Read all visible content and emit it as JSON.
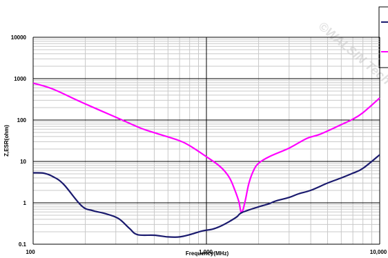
{
  "chart_data": {
    "type": "line",
    "title": "",
    "xlabel": "Frequency(MHz)",
    "ylabel": "Z,ESR(ohm)",
    "x_scale": "log",
    "y_scale": "log",
    "xlim": [
      100,
      10000
    ],
    "ylim": [
      0.1,
      10000
    ],
    "grid": true,
    "legend": "top-right (clipped)",
    "x_ticks": [
      "100",
      "1,000",
      "10,000"
    ],
    "y_ticks": [
      "0.1",
      "1",
      "10",
      "100",
      "1000",
      "10000"
    ],
    "series": [
      {
        "color": "#ff00ff",
        "points": [
          [
            100,
            780
          ],
          [
            130,
            560
          ],
          [
            190,
            270
          ],
          [
            310,
            110
          ],
          [
            420,
            63
          ],
          [
            520,
            47
          ],
          [
            680,
            33
          ],
          [
            800,
            24
          ],
          [
            1000,
            13
          ],
          [
            1200,
            7.5
          ],
          [
            1350,
            4.2
          ],
          [
            1460,
            2
          ],
          [
            1540,
            1.05
          ],
          [
            1580,
            0.62
          ],
          [
            1620,
            0.65
          ],
          [
            1680,
            1.2
          ],
          [
            1760,
            3
          ],
          [
            1870,
            6
          ],
          [
            2000,
            9
          ],
          [
            2300,
            13
          ],
          [
            3000,
            21
          ],
          [
            3800,
            36
          ],
          [
            4500,
            45
          ],
          [
            5900,
            75
          ],
          [
            7000,
            105
          ],
          [
            8000,
            150
          ],
          [
            10000,
            340
          ]
        ]
      },
      {
        "color": "#1a1a6e",
        "points": [
          [
            100,
            5.3
          ],
          [
            115,
            5.2
          ],
          [
            130,
            4.3
          ],
          [
            150,
            2.8
          ],
          [
            190,
            0.85
          ],
          [
            220,
            0.65
          ],
          [
            260,
            0.55
          ],
          [
            310,
            0.42
          ],
          [
            360,
            0.24
          ],
          [
            400,
            0.17
          ],
          [
            500,
            0.165
          ],
          [
            600,
            0.15
          ],
          [
            700,
            0.15
          ],
          [
            800,
            0.17
          ],
          [
            950,
            0.21
          ],
          [
            1080,
            0.23
          ],
          [
            1200,
            0.27
          ],
          [
            1350,
            0.35
          ],
          [
            1500,
            0.46
          ],
          [
            1600,
            0.58
          ],
          [
            2000,
            0.8
          ],
          [
            2300,
            0.95
          ],
          [
            2500,
            1.1
          ],
          [
            3000,
            1.35
          ],
          [
            3400,
            1.65
          ],
          [
            4000,
            2.0
          ],
          [
            5000,
            3.0
          ],
          [
            6000,
            4.0
          ],
          [
            7000,
            5.2
          ],
          [
            8000,
            6.8
          ],
          [
            10000,
            14.5
          ]
        ]
      }
    ]
  },
  "watermark": "©WALSIN Tech"
}
